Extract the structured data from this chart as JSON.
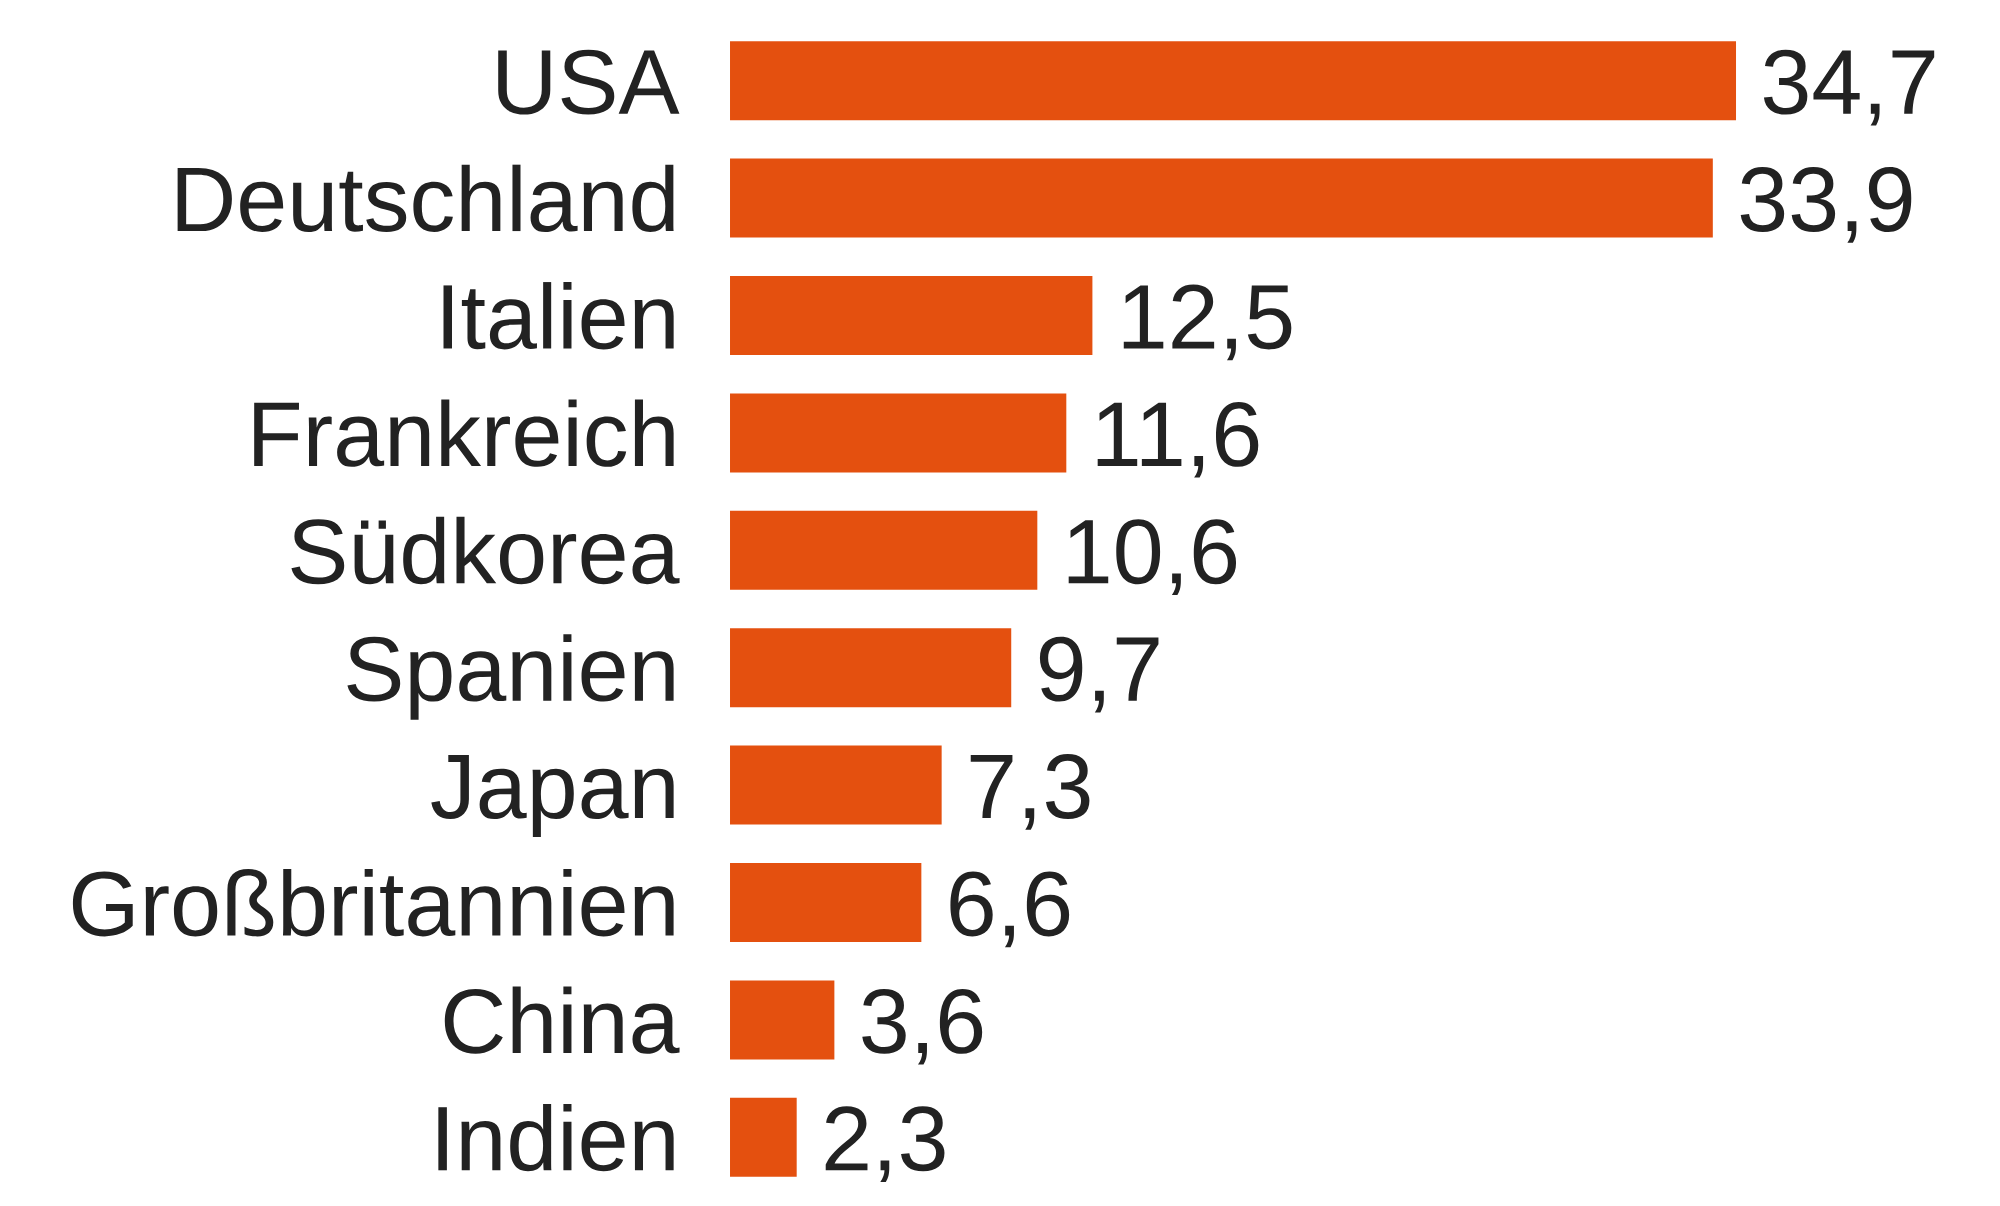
{
  "chart_data": {
    "type": "bar",
    "orientation": "horizontal",
    "categories": [
      "USA",
      "Deutschland",
      "Italien",
      "Frankreich",
      "Südkorea",
      "Spanien",
      "Japan",
      "Großbritannien",
      "China",
      "Indien"
    ],
    "values": [
      34.7,
      33.9,
      12.5,
      11.6,
      10.6,
      9.7,
      7.3,
      6.6,
      3.6,
      2.3
    ],
    "value_labels": [
      "34,7",
      "33,9",
      "12,5",
      "11,6",
      "10,6",
      "9,7",
      "7,3",
      "6,6",
      "3,6",
      "2,3"
    ],
    "color": "#e4500f"
  }
}
